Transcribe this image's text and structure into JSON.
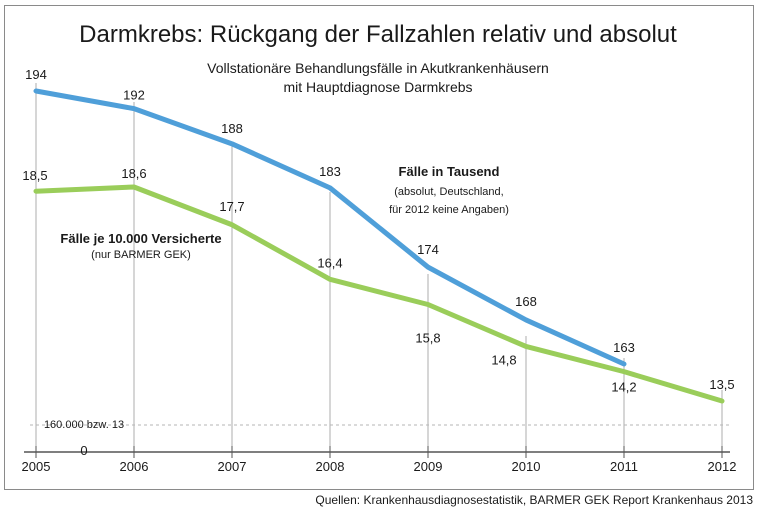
{
  "chart_data": {
    "type": "line",
    "title": "Darmkrebs: Rückgang der Fallzahlen relativ und absolut",
    "subtitle_lines": [
      "Vollstationäre Behandlungsfälle in Akutkrankenhäusern",
      "mit Hauptdiagnose Darmkrebs"
    ],
    "x": [
      "2005",
      "2006",
      "2007",
      "2008",
      "2009",
      "2010",
      "2011",
      "2012"
    ],
    "series": [
      {
        "name": "Fälle in Tausend",
        "note_lines": [
          "(absolut, Deutschland,",
          "für 2012 keine Angaben)"
        ],
        "color": "#4f9fd9",
        "values": [
          194,
          192,
          188,
          183,
          174,
          168,
          163,
          null
        ],
        "labels": [
          "194",
          "192",
          "188",
          "183",
          "174",
          "168",
          "163",
          ""
        ]
      },
      {
        "name": "Fälle je 10.000 Versicherte",
        "note_lines": [
          "(nur BARMER GEK)"
        ],
        "color": "#9acd5a",
        "values": [
          18.5,
          18.6,
          17.7,
          16.4,
          15.8,
          14.8,
          14.2,
          13.5
        ],
        "labels": [
          "18,5",
          "18,6",
          "17,7",
          "16,4",
          "15,8",
          "14,8",
          "14,2",
          "13,5"
        ]
      }
    ],
    "baseline_label": "160.000 bzw. 13",
    "zero_label": "0",
    "source": "Quellen: Krankenhausdiagnosestatistik, BARMER GEK Report Krankenhaus 2013"
  }
}
